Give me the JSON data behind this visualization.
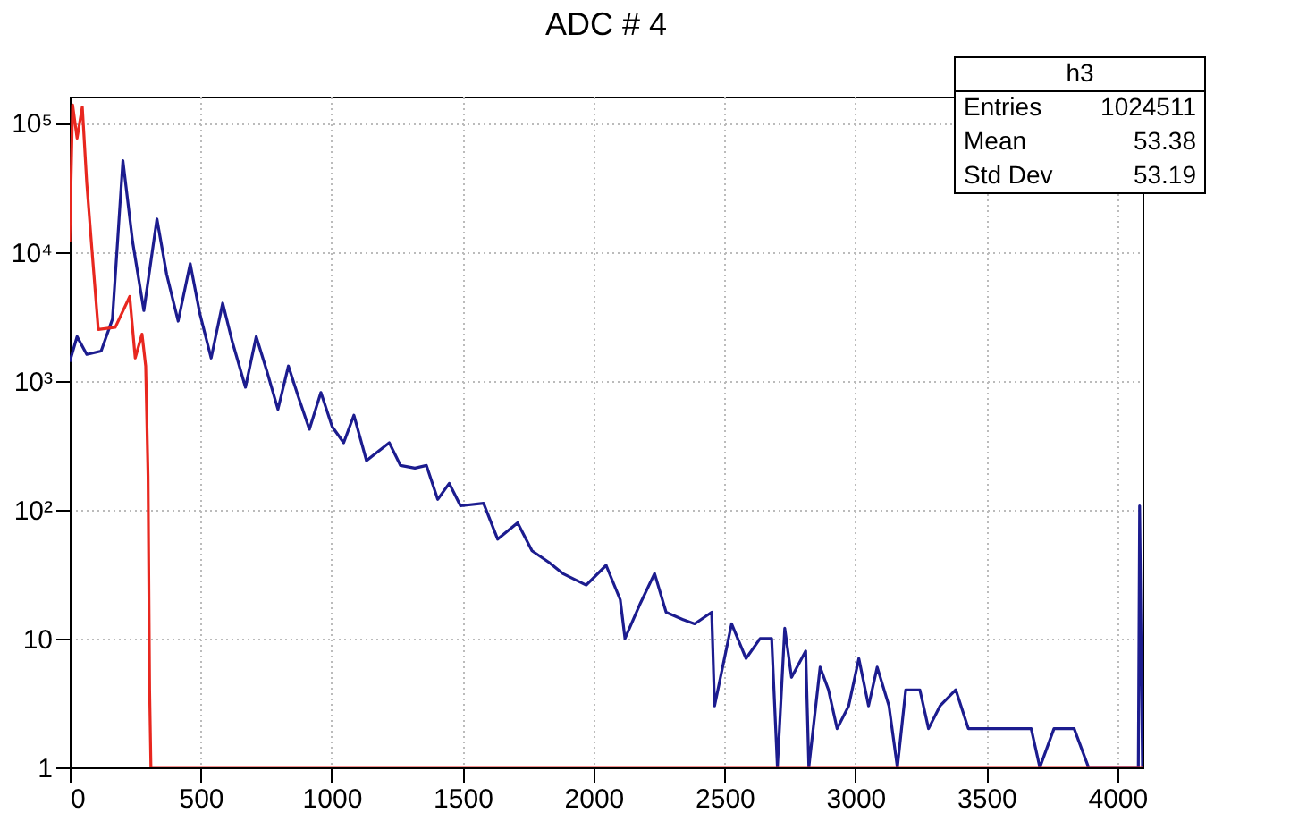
{
  "chart_data": {
    "type": "line",
    "title": "ADC # 4",
    "xlim": [
      0,
      4096
    ],
    "xticks": [
      0,
      500,
      1000,
      1500,
      2000,
      2500,
      3000,
      3500,
      4000
    ],
    "ylim": [
      1,
      160000
    ],
    "yticks": [
      1,
      10,
      {
        "value": 100,
        "label": "10²"
      },
      {
        "value": 1000,
        "label": "10³"
      },
      {
        "value": 10000,
        "label": "10⁴"
      },
      {
        "value": 100000,
        "label": "10⁵"
      }
    ],
    "log": "y",
    "grid": true,
    "line_style": "solid",
    "marker": "none",
    "annotations": [
      "h3",
      "Entries 1024511",
      "Mean 53.38",
      "Std Dev 53.19"
    ],
    "series": [
      {
        "color": "#1c1c8f",
        "x": [
          0,
          28,
          65,
          120,
          163,
          203,
          240,
          283,
          333,
          370,
          414,
          460,
          497,
          540,
          584,
          621,
          671,
          712,
          752,
          795,
          835,
          871,
          915,
          959,
          1002,
          1046,
          1085,
          1133,
          1220,
          1263,
          1318,
          1362,
          1405,
          1449,
          1492,
          1580,
          1634,
          1710,
          1765,
          1830,
          1882,
          1972,
          2048,
          2102,
          2120,
          2180,
          2233,
          2277,
          2342,
          2386,
          2451,
          2462,
          2527,
          2582,
          2636,
          2680,
          2702,
          2730,
          2756,
          2810,
          2822,
          2865,
          2897,
          2930,
          2974,
          3013,
          3050,
          3083,
          3128,
          3160,
          3192,
          3246,
          3279,
          3323,
          3383,
          3431,
          3486,
          3562,
          3617,
          3671,
          3704,
          3758,
          3802,
          3835,
          3890,
          4080,
          4085,
          4096
        ],
        "values": [
          1400,
          2200,
          1600,
          1700,
          3000,
          51000,
          12000,
          3500,
          18000,
          6700,
          2900,
          8100,
          3300,
          1500,
          4000,
          2000,
          890,
          2200,
          1200,
          600,
          1300,
          770,
          420,
          810,
          440,
          330,
          540,
          240,
          330,
          220,
          210,
          220,
          120,
          160,
          107,
          112,
          59,
          79,
          48,
          39,
          32,
          26,
          37,
          20,
          10,
          19,
          32,
          16,
          14,
          13,
          16,
          3,
          13,
          7,
          10,
          10,
          1,
          12,
          5,
          8,
          1,
          6,
          4,
          2,
          3,
          7,
          3,
          6,
          3,
          1,
          4,
          4,
          2,
          3,
          4,
          2,
          2,
          2,
          2,
          2,
          1,
          2,
          2,
          2,
          1,
          1,
          107,
          1
        ]
      },
      {
        "color": "#e8271f",
        "x": [
          0,
          11,
          28,
          48,
          65,
          87,
          109,
          174,
          229,
          250,
          276,
          290,
          299,
          305,
          310,
          4096
        ],
        "values": [
          12000,
          138000,
          76000,
          133000,
          34000,
          9100,
          2500,
          2600,
          4500,
          1500,
          2300,
          1300,
          180,
          4,
          1,
          1
        ]
      }
    ]
  }
}
